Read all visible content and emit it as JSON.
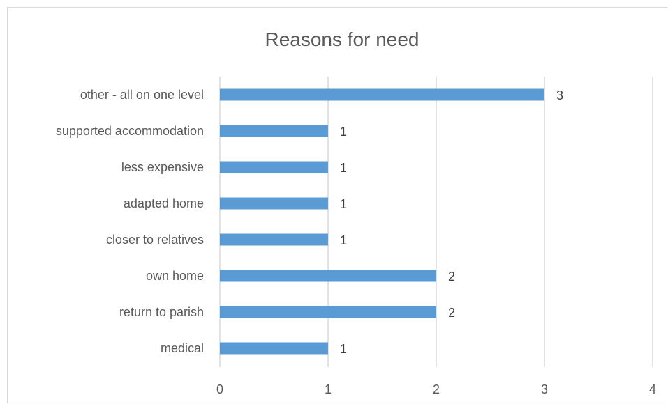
{
  "chart_data": {
    "type": "bar",
    "orientation": "horizontal",
    "title": "Reasons for need",
    "categories": [
      "other - all on one level",
      "supported accommodation",
      "less expensive",
      "adapted home",
      "closer to relatives",
      "own home",
      "return to parish",
      "medical"
    ],
    "values": [
      3,
      1,
      1,
      1,
      1,
      2,
      2,
      1
    ],
    "xlim": [
      0,
      4
    ],
    "xticks": [
      "0",
      "1",
      "2",
      "3",
      "4"
    ],
    "grid": true,
    "legend": "none",
    "bar_color": "#5b9bd5",
    "data_labels": true
  }
}
